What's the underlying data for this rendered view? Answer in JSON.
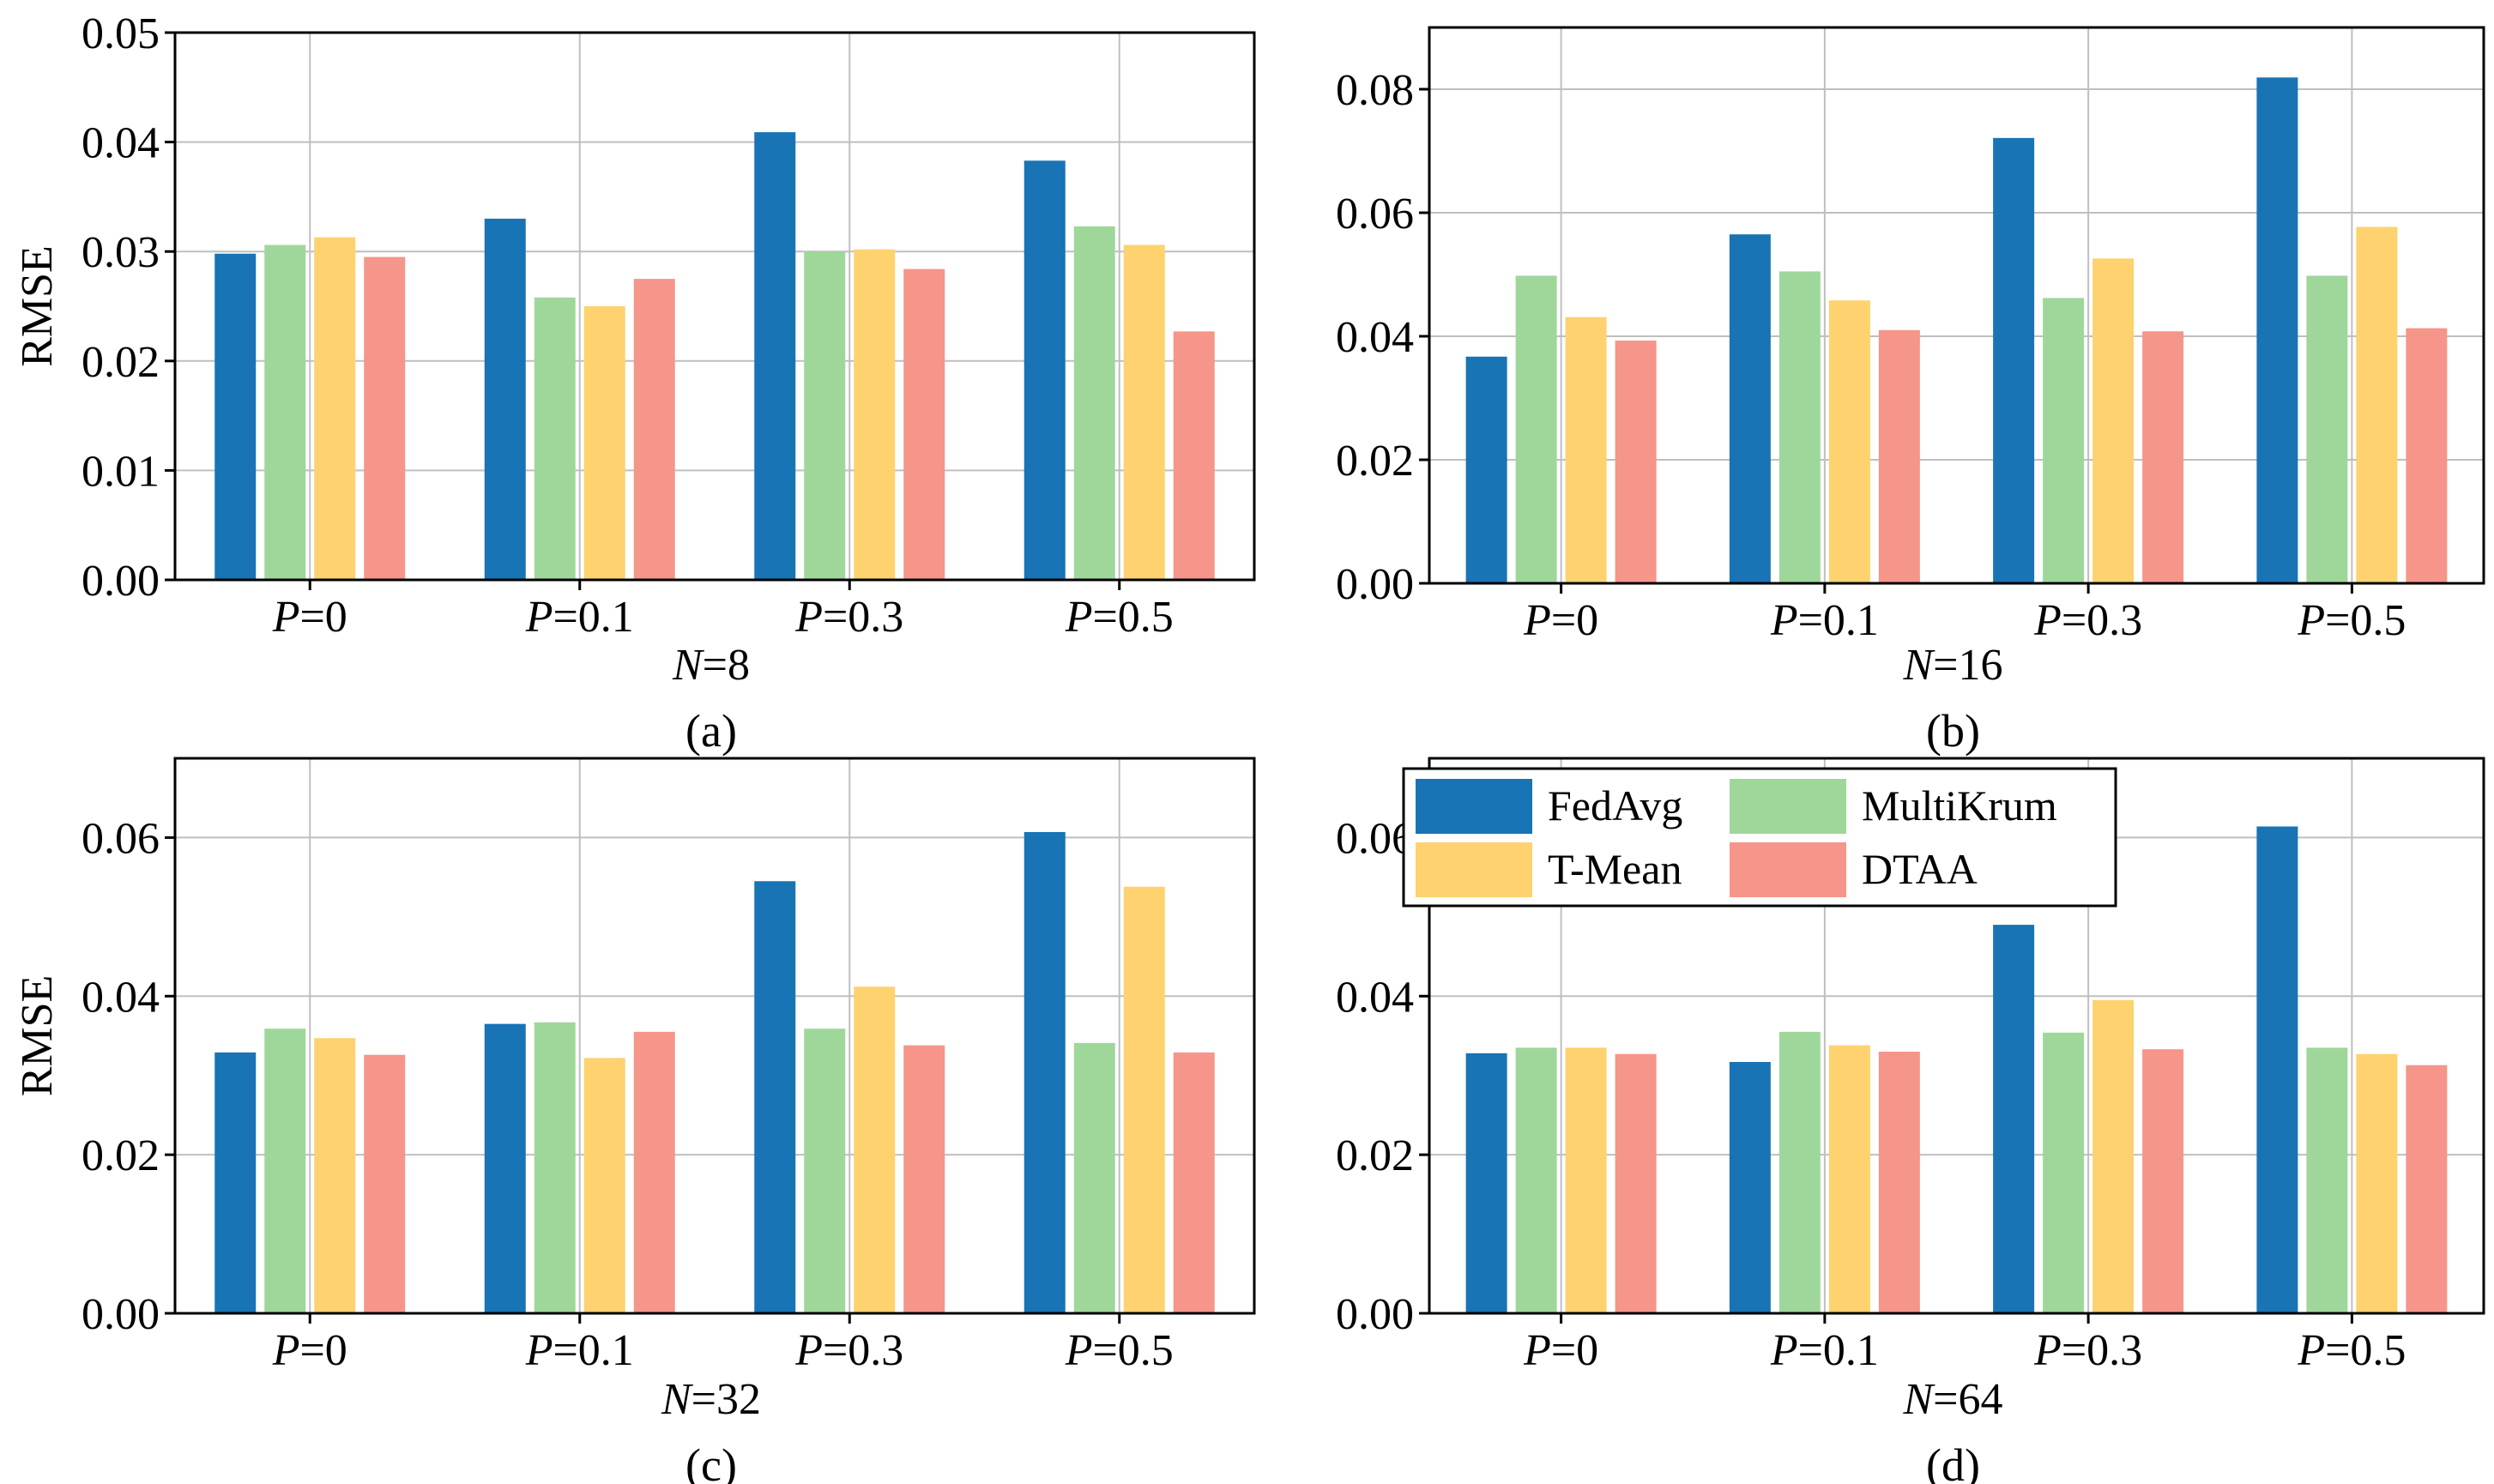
{
  "figure": {
    "legend": {
      "entries": [
        {
          "name": "FedAvg",
          "color": "#1874B4"
        },
        {
          "name": "MultiKrum",
          "color": "#9FD79B"
        },
        {
          "name": "T-Mean",
          "color": "#FDD26F"
        },
        {
          "name": "DTAA",
          "color": "#F6958A"
        }
      ]
    }
  },
  "chart_data": [
    {
      "type": "bar",
      "caption": "(a)",
      "xtitle_var": "N",
      "xtitle_val": "=8",
      "ylabel": "RMSE",
      "ylim": [
        0,
        0.05
      ],
      "yticks": [
        "0.00",
        "0.01",
        "0.02",
        "0.03",
        "0.04",
        "0.05"
      ],
      "categories": [
        {
          "var": "P",
          "val": "=0"
        },
        {
          "var": "P",
          "val": "=0.1"
        },
        {
          "var": "P",
          "val": "=0.3"
        },
        {
          "var": "P",
          "val": "=0.5"
        }
      ],
      "series": [
        {
          "name": "FedAvg",
          "values": [
            0.0298,
            0.033,
            0.0409,
            0.0383
          ]
        },
        {
          "name": "MultiKrum",
          "values": [
            0.0306,
            0.0258,
            0.03,
            0.0323
          ]
        },
        {
          "name": "T-Mean",
          "values": [
            0.0313,
            0.025,
            0.0302,
            0.0306
          ]
        },
        {
          "name": "DTAA",
          "values": [
            0.0295,
            0.0275,
            0.0284,
            0.0227
          ]
        }
      ],
      "grid": true
    },
    {
      "type": "bar",
      "caption": "(b)",
      "xtitle_var": "N",
      "xtitle_val": "=16",
      "ylabel": "",
      "ylim": [
        0,
        0.09
      ],
      "yticks": [
        "0.00",
        "0.02",
        "0.04",
        "0.06",
        "0.08"
      ],
      "categories": [
        {
          "var": "P",
          "val": "=0"
        },
        {
          "var": "P",
          "val": "=0.1"
        },
        {
          "var": "P",
          "val": "=0.3"
        },
        {
          "var": "P",
          "val": "=0.5"
        }
      ],
      "series": [
        {
          "name": "FedAvg",
          "values": [
            0.0367,
            0.0565,
            0.0721,
            0.0819
          ]
        },
        {
          "name": "MultiKrum",
          "values": [
            0.0498,
            0.0505,
            0.0462,
            0.0498
          ]
        },
        {
          "name": "T-Mean",
          "values": [
            0.0431,
            0.0458,
            0.0526,
            0.0577
          ]
        },
        {
          "name": "DTAA",
          "values": [
            0.0393,
            0.041,
            0.0408,
            0.0413
          ]
        }
      ],
      "grid": true
    },
    {
      "type": "bar",
      "caption": "(c)",
      "xtitle_var": "N",
      "xtitle_val": "=32",
      "ylabel": "RMSE",
      "ylim": [
        0,
        0.07
      ],
      "yticks": [
        "0.00",
        "0.02",
        "0.04",
        "0.06"
      ],
      "categories": [
        {
          "var": "P",
          "val": "=0"
        },
        {
          "var": "P",
          "val": "=0.1"
        },
        {
          "var": "P",
          "val": "=0.3"
        },
        {
          "var": "P",
          "val": "=0.5"
        }
      ],
      "series": [
        {
          "name": "FedAvg",
          "values": [
            0.0329,
            0.0365,
            0.0545,
            0.0607
          ]
        },
        {
          "name": "MultiKrum",
          "values": [
            0.0359,
            0.0367,
            0.0359,
            0.0341
          ]
        },
        {
          "name": "T-Mean",
          "values": [
            0.0347,
            0.0322,
            0.0412,
            0.0538
          ]
        },
        {
          "name": "DTAA",
          "values": [
            0.0326,
            0.0355,
            0.0338,
            0.0329
          ]
        }
      ],
      "grid": true
    },
    {
      "type": "bar",
      "caption": "(d)",
      "xtitle_var": "N",
      "xtitle_val": "=64",
      "ylabel": "",
      "ylim": [
        0,
        0.07
      ],
      "yticks": [
        "0.00",
        "0.02",
        "0.04",
        "0.06"
      ],
      "categories": [
        {
          "var": "P",
          "val": "=0"
        },
        {
          "var": "P",
          "val": "=0.1"
        },
        {
          "var": "P",
          "val": "=0.3"
        },
        {
          "var": "P",
          "val": "=0.5"
        }
      ],
      "series": [
        {
          "name": "FedAvg",
          "values": [
            0.0328,
            0.0317,
            0.049,
            0.0614
          ]
        },
        {
          "name": "MultiKrum",
          "values": [
            0.0335,
            0.0355,
            0.0354,
            0.0335
          ]
        },
        {
          "name": "T-Mean",
          "values": [
            0.0335,
            0.0338,
            0.0395,
            0.0327
          ]
        },
        {
          "name": "DTAA",
          "values": [
            0.0327,
            0.033,
            0.0333,
            0.0313
          ]
        }
      ],
      "grid": true,
      "legend_position": "top-left"
    }
  ]
}
